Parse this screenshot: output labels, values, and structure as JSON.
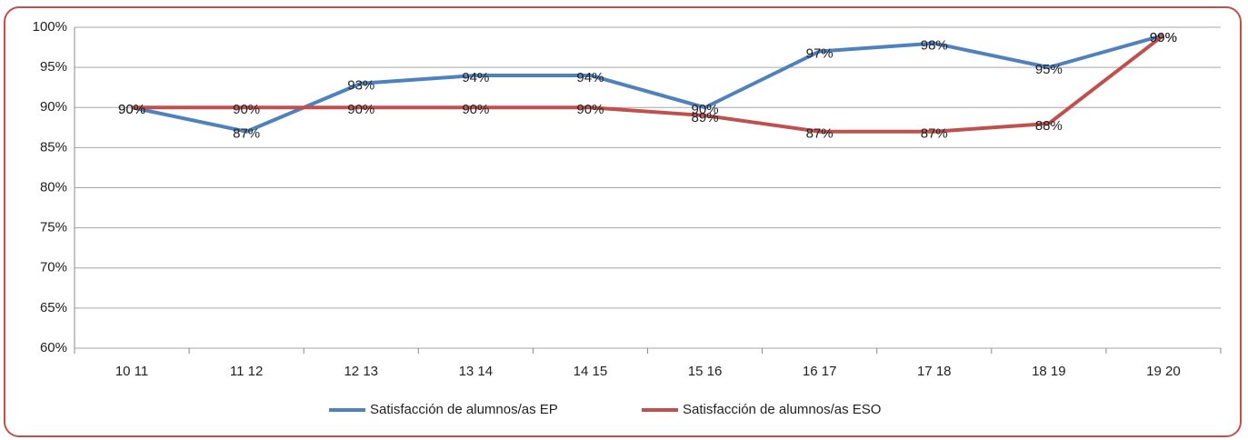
{
  "chart_data": {
    "type": "line",
    "categories": [
      "10 11",
      "11 12",
      "12 13",
      "13 14",
      "14 15",
      "15 16",
      "16 17",
      "17 18",
      "18 19",
      "19 20"
    ],
    "series": [
      {
        "name": "Satisfacción de alumnos/as EP",
        "color": "#4f81bd",
        "values": [
          90,
          87,
          93,
          94,
          94,
          90,
          97,
          98,
          95,
          99
        ],
        "value_labels": [
          "90%",
          "87%",
          "93%",
          "94%",
          "94%",
          "90%",
          "97%",
          "98%",
          "95%",
          "99%"
        ]
      },
      {
        "name": "Satisfacción de alumnos/as ESO",
        "color": "#c0504d",
        "values": [
          90,
          90,
          90,
          90,
          90,
          89,
          87,
          87,
          88,
          99
        ],
        "value_labels": [
          "90%",
          "90%",
          "90%",
          "90%",
          "90%",
          "89%",
          "87%",
          "87%",
          "88%",
          "99%"
        ]
      }
    ],
    "ylim": [
      60,
      100
    ],
    "yticks": [
      {
        "value": 60,
        "label": "60%"
      },
      {
        "value": 65,
        "label": "65%"
      },
      {
        "value": 70,
        "label": "70%"
      },
      {
        "value": 75,
        "label": "75%"
      },
      {
        "value": 80,
        "label": "80%"
      },
      {
        "value": 85,
        "label": "85%"
      },
      {
        "value": 90,
        "label": "90%"
      },
      {
        "value": 95,
        "label": "95%"
      },
      {
        "value": 100,
        "label": "100%"
      }
    ],
    "grid": true,
    "legend": "bottom"
  }
}
